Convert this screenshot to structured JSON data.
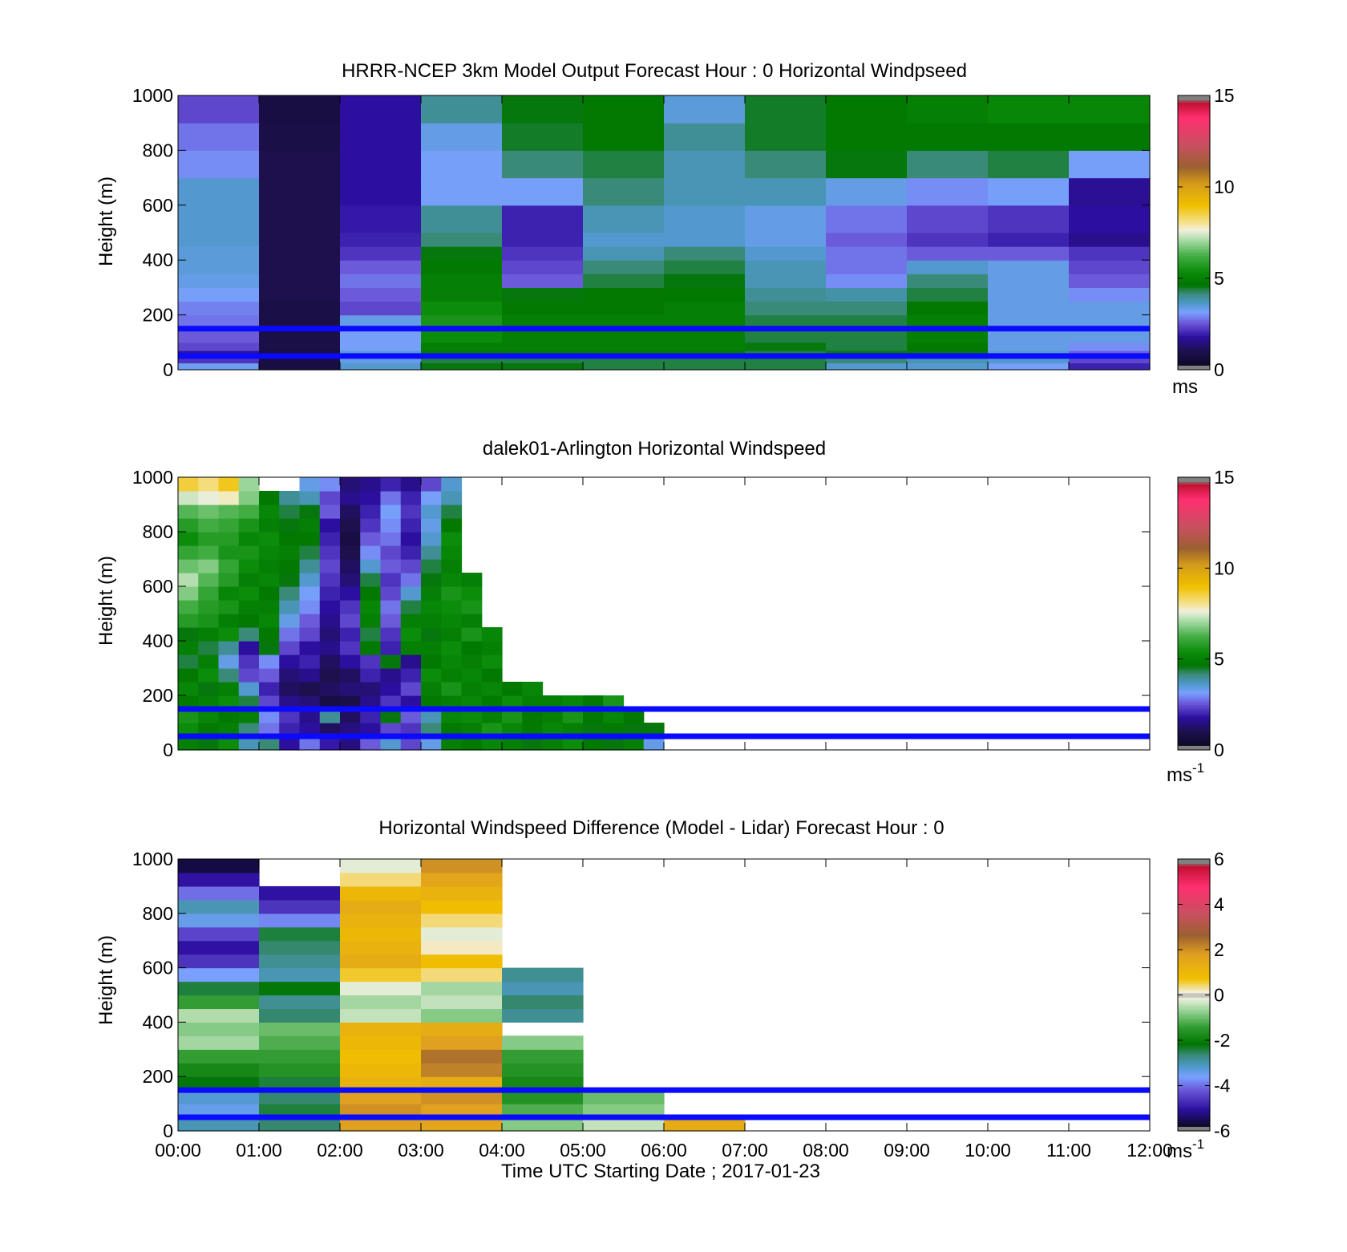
{
  "figure": {
    "xlabel": "Time UTC  Starting Date ; 2017-01-23",
    "x_ticks": [
      "00:00",
      "01:00",
      "02:00",
      "03:00",
      "04:00",
      "05:00",
      "06:00",
      "07:00",
      "08:00",
      "09:00",
      "10:00",
      "11:00",
      "12:00"
    ]
  },
  "colors": {
    "ref_lines": "#0a0aff",
    "nan_fill": "#ffffff"
  },
  "chart_data": [
    {
      "type": "heatmap",
      "title": "HRRR-NCEP 3km Model Output   Forecast Hour : 0 Horizontal Windpseed",
      "ylabel": "Height (m)",
      "xlim": [
        0,
        12
      ],
      "ylim": [
        0,
        1000
      ],
      "y_ticks": [
        "0",
        "200",
        "400",
        "600",
        "800",
        "1000"
      ],
      "reference_lines_m": [
        150,
        50
      ],
      "colorbar": {
        "range": [
          0,
          15
        ],
        "ticks": [
          "0",
          "5",
          "10",
          "15"
        ],
        "unit": "ms",
        "unit_sup": "",
        "colormap": "wind"
      },
      "x_edges": [
        0,
        1,
        2,
        3,
        4,
        5,
        6,
        7,
        8,
        9,
        10,
        11,
        12
      ],
      "y_edges": [
        0,
        25,
        45,
        70,
        100,
        150,
        200,
        250,
        300,
        350,
        400,
        450,
        500,
        600,
        700,
        800,
        900,
        1000
      ],
      "values": [
        [
          3.3,
          0.8,
          3.6,
          4.6,
          4.6,
          4.4,
          4.4,
          4.4,
          3.6,
          3.6,
          3.2,
          2.0
        ],
        [
          2.2,
          0.8,
          3.4,
          4.4,
          4.4,
          4.4,
          4.4,
          4.4,
          4.2,
          3.8,
          3.6,
          2.4
        ],
        [
          1.8,
          0.8,
          3.6,
          4.8,
          4.8,
          4.8,
          4.8,
          4.4,
          4.6,
          4.6,
          3.6,
          2.6
        ],
        [
          2.4,
          0.9,
          3.2,
          5.0,
          5.0,
          5.0,
          5.0,
          4.6,
          4.4,
          4.8,
          3.4,
          3.0
        ],
        [
          2.6,
          0.9,
          3.2,
          5.4,
          5.0,
          5.0,
          5.0,
          4.4,
          4.4,
          5.0,
          3.4,
          3.4
        ],
        [
          2.8,
          0.9,
          3.4,
          5.6,
          5.0,
          5.0,
          5.0,
          4.4,
          4.4,
          5.0,
          3.4,
          3.4
        ],
        [
          2.9,
          0.9,
          2.4,
          5.4,
          4.8,
          4.8,
          5.0,
          4.2,
          4.2,
          4.8,
          3.4,
          3.4
        ],
        [
          3.2,
          1.0,
          2.6,
          5.0,
          4.6,
          4.8,
          4.8,
          4.0,
          3.9,
          4.4,
          3.4,
          3.0
        ],
        [
          3.4,
          1.0,
          2.8,
          5.0,
          2.6,
          4.4,
          4.6,
          3.8,
          3.0,
          4.2,
          3.4,
          2.6
        ],
        [
          3.5,
          1.0,
          2.6,
          4.8,
          2.4,
          4.2,
          4.4,
          3.8,
          2.8,
          3.6,
          3.4,
          2.4
        ],
        [
          3.5,
          1.0,
          2.2,
          4.6,
          2.2,
          3.8,
          4.2,
          3.6,
          2.8,
          2.6,
          2.6,
          2.2
        ],
        [
          3.6,
          1.0,
          2.0,
          4.2,
          2.0,
          3.6,
          3.6,
          3.4,
          2.6,
          2.2,
          2.0,
          1.6
        ],
        [
          3.6,
          1.0,
          1.9,
          4.0,
          2.0,
          3.8,
          3.6,
          3.4,
          2.8,
          2.4,
          2.2,
          1.8
        ],
        [
          3.6,
          1.0,
          1.8,
          3.2,
          3.2,
          4.2,
          3.8,
          3.8,
          3.4,
          3.0,
          3.2,
          1.7
        ],
        [
          3.0,
          1.0,
          1.8,
          3.2,
          4.2,
          4.4,
          3.8,
          4.2,
          4.6,
          4.2,
          4.4,
          3.2
        ],
        [
          2.8,
          0.9,
          1.8,
          3.4,
          4.5,
          4.8,
          4.0,
          4.5,
          4.8,
          4.8,
          4.8,
          4.8
        ],
        [
          2.4,
          0.8,
          1.8,
          4.0,
          4.6,
          4.8,
          3.5,
          4.5,
          4.8,
          5.0,
          5.2,
          5.2
        ]
      ]
    },
    {
      "type": "heatmap",
      "title": "dalek01-Arlington  Horizontal Windspeed",
      "ylabel": "Height (m)",
      "xlim": [
        0,
        12
      ],
      "ylim": [
        0,
        1000
      ],
      "y_ticks": [
        "0",
        "200",
        "400",
        "600",
        "800",
        "1000"
      ],
      "reference_lines_m": [
        150,
        50
      ],
      "colorbar": {
        "range": [
          0,
          15
        ],
        "ticks": [
          "0",
          "5",
          "10",
          "15"
        ],
        "unit": "ms",
        "unit_sup": "-1",
        "colormap": "wind"
      },
      "x_edges": [
        0,
        0.25,
        0.5,
        0.75,
        1,
        1.25,
        1.5,
        1.75,
        2,
        2.25,
        2.5,
        2.75,
        3,
        3.25,
        3.5,
        3.75,
        4,
        4.25,
        4.5,
        4.75,
        5,
        5.25,
        5.5,
        5.75,
        6
      ],
      "y_edges": [
        0,
        50,
        100,
        150,
        200,
        250,
        300,
        350,
        400,
        450,
        500,
        550,
        600,
        650,
        700,
        750,
        800,
        850,
        900,
        950,
        1000
      ],
      "values": [
        [
          5.0,
          4.6,
          5.4,
          3.8,
          4.2,
          1.8,
          2.8,
          1.9,
          1.5,
          2.6,
          3.6,
          2.4,
          3.4,
          5.0,
          4.8,
          5.2,
          5.0,
          4.6,
          5.0,
          5.4,
          4.8,
          4.6,
          5.0,
          3.4
        ],
        [
          5.4,
          4.8,
          5.0,
          4.2,
          2.8,
          2.0,
          1.8,
          1.2,
          1.5,
          1.8,
          2.4,
          2.2,
          4.2,
          4.8,
          5.0,
          5.6,
          5.2,
          4.8,
          5.2,
          5.0,
          4.6,
          4.8,
          4.6,
          4.6
        ],
        [
          5.6,
          5.2,
          4.8,
          5.0,
          3.0,
          2.2,
          1.6,
          4.0,
          1.2,
          2.0,
          4.6,
          2.6,
          3.8,
          5.2,
          5.4,
          5.0,
          5.6,
          4.8,
          5.0,
          5.6,
          4.8,
          5.2,
          4.8,
          null
        ],
        [
          4.8,
          5.0,
          5.4,
          4.4,
          2.4,
          1.6,
          1.4,
          0.8,
          0.9,
          1.6,
          2.2,
          1.8,
          4.8,
          5.0,
          5.2,
          4.8,
          5.4,
          5.0,
          5.0,
          5.2,
          4.8,
          5.6,
          null,
          null
        ],
        [
          5.2,
          4.6,
          5.0,
          3.6,
          2.0,
          1.2,
          1.0,
          1.2,
          1.4,
          1.4,
          1.8,
          2.4,
          5.0,
          5.6,
          5.0,
          5.2,
          4.8,
          5.2,
          null,
          null,
          null,
          null,
          null,
          null
        ],
        [
          4.8,
          5.4,
          4.2,
          2.4,
          2.6,
          1.4,
          1.6,
          1.0,
          1.2,
          2.0,
          1.6,
          2.0,
          5.4,
          5.0,
          5.2,
          4.8,
          null,
          null,
          null,
          null,
          null,
          null,
          null,
          null
        ],
        [
          4.4,
          5.0,
          3.4,
          2.2,
          3.0,
          1.8,
          2.0,
          1.2,
          1.8,
          2.2,
          4.6,
          1.6,
          4.8,
          5.2,
          5.0,
          5.4,
          null,
          null,
          null,
          null,
          null,
          null,
          null,
          null
        ],
        [
          5.0,
          4.4,
          4.0,
          1.8,
          4.6,
          2.4,
          1.8,
          1.6,
          2.2,
          4.8,
          2.0,
          5.0,
          5.0,
          5.4,
          4.8,
          5.0,
          null,
          null,
          null,
          null,
          null,
          null,
          null,
          null
        ],
        [
          4.6,
          5.0,
          5.4,
          4.2,
          4.8,
          2.8,
          2.4,
          1.4,
          2.0,
          4.4,
          2.2,
          5.4,
          4.6,
          5.0,
          5.6,
          5.2,
          null,
          null,
          null,
          null,
          null,
          null,
          null,
          null
        ],
        [
          5.8,
          5.6,
          5.0,
          4.8,
          5.2,
          3.4,
          2.6,
          1.6,
          2.4,
          5.0,
          2.6,
          5.0,
          5.0,
          5.2,
          5.0,
          null,
          null,
          null,
          null,
          null,
          null,
          null,
          null,
          null
        ],
        [
          6.2,
          5.8,
          5.6,
          5.0,
          5.0,
          3.8,
          3.0,
          1.8,
          2.2,
          5.2,
          2.8,
          4.4,
          5.2,
          5.4,
          5.6,
          null,
          null,
          null,
          null,
          null,
          null,
          null,
          null,
          null
        ],
        [
          6.8,
          6.0,
          5.2,
          5.4,
          4.8,
          4.2,
          3.2,
          2.0,
          1.8,
          4.8,
          2.4,
          3.6,
          5.0,
          5.6,
          5.4,
          null,
          null,
          null,
          null,
          null,
          null,
          null,
          null,
          null
        ],
        [
          7.2,
          6.4,
          5.8,
          5.0,
          5.2,
          4.6,
          3.6,
          2.2,
          1.4,
          4.4,
          2.2,
          2.8,
          4.6,
          5.2,
          5.0,
          null,
          null,
          null,
          null,
          null,
          null,
          null,
          null,
          null
        ],
        [
          6.6,
          6.8,
          6.0,
          5.4,
          5.0,
          4.8,
          4.0,
          2.4,
          1.2,
          3.6,
          2.6,
          2.4,
          4.4,
          5.0,
          null,
          null,
          null,
          null,
          null,
          null,
          null,
          null,
          null,
          null
        ],
        [
          6.0,
          6.2,
          5.6,
          5.6,
          5.2,
          5.0,
          4.4,
          2.2,
          1.0,
          3.0,
          2.4,
          2.0,
          4.0,
          5.2,
          null,
          null,
          null,
          null,
          null,
          null,
          null,
          null,
          null,
          null
        ],
        [
          5.4,
          5.8,
          5.8,
          5.2,
          5.4,
          4.8,
          4.8,
          2.0,
          0.8,
          2.6,
          2.8,
          1.8,
          3.6,
          5.4,
          null,
          null,
          null,
          null,
          null,
          null,
          null,
          null,
          null,
          null
        ],
        [
          5.8,
          6.2,
          6.0,
          5.6,
          5.0,
          4.6,
          5.0,
          1.8,
          1.0,
          2.2,
          3.0,
          2.0,
          3.4,
          4.8,
          null,
          null,
          null,
          null,
          null,
          null,
          null,
          null,
          null,
          null
        ],
        [
          6.4,
          6.6,
          6.4,
          6.2,
          5.2,
          4.4,
          4.6,
          2.6,
          1.2,
          2.0,
          3.2,
          2.2,
          3.6,
          4.4,
          null,
          null,
          null,
          null,
          null,
          null,
          null,
          null,
          null,
          null
        ],
        [
          7.4,
          7.6,
          7.8,
          6.8,
          4.8,
          4.0,
          3.8,
          2.4,
          1.6,
          1.8,
          2.8,
          2.0,
          3.2,
          3.8,
          null,
          null,
          null,
          null,
          null,
          null,
          null,
          null,
          null,
          null
        ],
        [
          8.6,
          8.2,
          8.8,
          7.0,
          null,
          null,
          3.4,
          3.0,
          1.4,
          1.6,
          2.0,
          1.6,
          2.4,
          3.6,
          null,
          null,
          null,
          null,
          null,
          null,
          null,
          null,
          null,
          null
        ]
      ]
    },
    {
      "type": "heatmap",
      "title": "Horizontal Windspeed Difference (Model - Lidar) Forecast Hour : 0",
      "ylabel": "Height (m)",
      "xlim": [
        0,
        12
      ],
      "ylim": [
        0,
        1000
      ],
      "y_ticks": [
        "0",
        "200",
        "400",
        "600",
        "800",
        "1000"
      ],
      "reference_lines_m": [
        150,
        50
      ],
      "colorbar": {
        "range": [
          -6,
          6
        ],
        "ticks": [
          "-6",
          "-4",
          "-2",
          "0",
          "2",
          "4",
          "6"
        ],
        "unit": "ms",
        "unit_sup": "-1",
        "colormap": "diff"
      },
      "x_edges": [
        0,
        1,
        2,
        3,
        4,
        5,
        6,
        7
      ],
      "y_edges": [
        0,
        50,
        100,
        150,
        200,
        250,
        300,
        350,
        400,
        450,
        500,
        550,
        600,
        650,
        700,
        750,
        800,
        850,
        900,
        950,
        1000
      ],
      "values": [
        [
          -3.0,
          -2.6,
          1.8,
          1.6,
          -0.8,
          -0.4,
          1.4
        ],
        [
          -3.4,
          -2.4,
          2.0,
          1.8,
          -1.2,
          -0.8,
          null
        ],
        [
          -3.2,
          -2.6,
          1.8,
          2.0,
          -1.6,
          -1.0,
          null
        ],
        [
          -2.2,
          -2.4,
          1.2,
          1.4,
          -1.8,
          null,
          null
        ],
        [
          -1.8,
          -1.6,
          1.0,
          2.2,
          -1.6,
          null,
          null
        ],
        [
          -1.4,
          -1.4,
          0.8,
          2.4,
          -1.4,
          null,
          null
        ],
        [
          -0.6,
          -1.2,
          1.0,
          1.8,
          -0.8,
          null,
          null
        ],
        [
          -0.8,
          -1.0,
          1.2,
          1.4,
          null,
          null,
          null
        ],
        [
          -0.5,
          -2.6,
          -0.4,
          -0.8,
          -2.8,
          null,
          null
        ],
        [
          -1.4,
          -2.8,
          -0.6,
          -0.4,
          -2.6,
          null,
          null
        ],
        [
          -2.4,
          -2.2,
          -0.2,
          -0.6,
          -3.0,
          null,
          null
        ],
        [
          -3.6,
          -3.0,
          0.6,
          0.4,
          -2.8,
          null,
          null
        ],
        [
          -4.6,
          -2.8,
          1.4,
          0.8,
          null,
          null,
          null
        ],
        [
          -5.0,
          -2.6,
          1.2,
          0.2,
          null,
          null,
          null
        ],
        [
          -4.4,
          -2.4,
          1.0,
          -0.2,
          null,
          null,
          null
        ],
        [
          -3.4,
          -3.8,
          1.2,
          0.4,
          null,
          null,
          null
        ],
        [
          -3.0,
          -4.6,
          1.4,
          0.8,
          null,
          null,
          null
        ],
        [
          -4.0,
          -5.0,
          1.0,
          1.2,
          null,
          null,
          null
        ],
        [
          -5.0,
          null,
          0.4,
          1.6,
          null,
          null,
          null
        ],
        [
          -5.6,
          null,
          -0.2,
          2.0,
          null,
          null,
          null
        ]
      ]
    }
  ]
}
